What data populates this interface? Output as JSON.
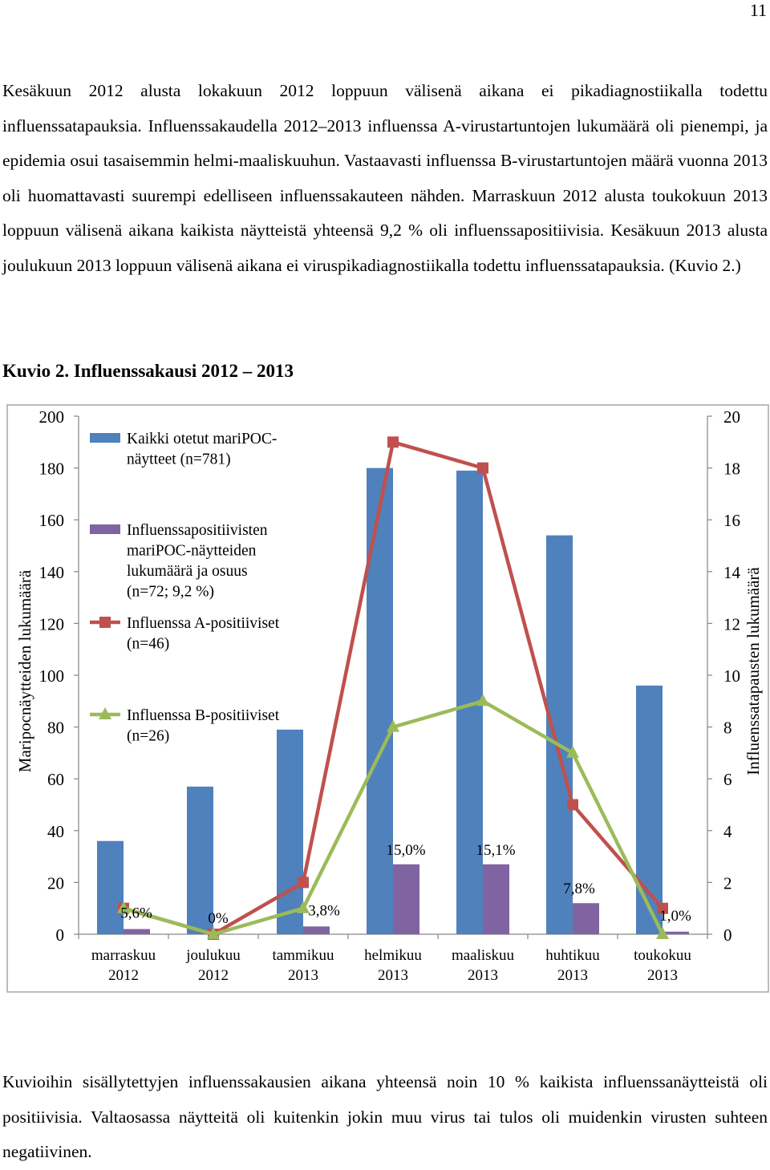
{
  "page": {
    "number": "11"
  },
  "text": {
    "paragraph1": "Kesäkuun 2012 alusta lokakuun 2012 loppuun välisenä aikana ei pikadiagnostiikalla todettu influenssatapauksia. Influenssakaudella 2012–2013 influenssa A-virustartuntojen lukumäärä oli pienempi, ja epidemia osui tasaisemmin helmi-maaliskuuhun. Vastaavasti influenssa B-virustartuntojen määrä vuonna 2013 oli huomattavasti suurempi edelliseen influenssakauteen nähden. Marraskuun 2012 alusta toukokuun 2013 loppuun välisenä aikana kaikista näytteistä yhteensä 9,2 % oli influenssapositiivisia. Kesäkuun 2013 alusta joulukuun 2013 loppuun välisenä aikana ei viruspikadiagnostiikalla todettu influenssatapauksia. (Kuvio 2.)",
    "figure_caption": "Kuvio 2. Influenssakausi 2012 – 2013",
    "paragraph2": "Kuvioihin sisällytettyjen influenssakausien aikana yhteensä noin 10 % kaikista influenssanäytteistä oli positiivisia. Valtaosassa näytteitä oli kuitenkin jokin muu virus tai tulos oli muidenkin virusten suhteen negatiivinen."
  },
  "chart_data": {
    "type": "bar",
    "categories": [
      [
        "marraskuu",
        "2012"
      ],
      [
        "joulukuu",
        "2012"
      ],
      [
        "tammikuu",
        "2013"
      ],
      [
        "helmikuu",
        "2013"
      ],
      [
        "maaliskuu",
        "2013"
      ],
      [
        "huhtikuu",
        "2013"
      ],
      [
        "toukokuu",
        "2013"
      ]
    ],
    "ylabel": "Maripocnäytteiden lukumäärä",
    "ylabel_right": "Influenssatapausten lukumäärä",
    "ylim": [
      0,
      200
    ],
    "yticks": [
      0,
      20,
      40,
      60,
      80,
      100,
      120,
      140,
      160,
      180,
      200
    ],
    "ylim_right": [
      0,
      20
    ],
    "yticks_right": [
      0,
      2,
      4,
      6,
      8,
      10,
      12,
      14,
      16,
      18,
      20
    ],
    "grid": false,
    "legend_position": "top-left inside",
    "series": [
      {
        "name": "Kaikki otetut mariPOC-näytteet (n=781)",
        "legend_lines": [
          "Kaikki otetut mariPOC-",
          "näytteet (n=781)"
        ],
        "type": "bar",
        "axis": "left",
        "color": "#4f81bd",
        "values": [
          36,
          57,
          79,
          180,
          179,
          154,
          96
        ]
      },
      {
        "name": "Influenssapositiivisten mariPOC-näytteiden lukumäärä ja osuus (n=72; 9,2 %)",
        "legend_lines": [
          "Influenssapositiivisten",
          "mariPOC-näytteiden",
          "lukumäärä ja osuus",
          "(n=72; 9,2 %)"
        ],
        "type": "bar",
        "axis": "left",
        "color": "#8064a2",
        "values": [
          2,
          0,
          3,
          27,
          27,
          12,
          1
        ],
        "data_labels": [
          "5,6%",
          "0%",
          "3,8%",
          "15,0%",
          "15,1%",
          "7,8%",
          "1,0%"
        ]
      },
      {
        "name": "Influenssa A-positiiviset (n=46)",
        "legend_lines": [
          "Influenssa A-positiiviset",
          "(n=46)"
        ],
        "type": "line",
        "marker": "square",
        "axis": "right",
        "color": "#c0504d",
        "values": [
          1,
          0,
          2,
          19,
          18,
          5,
          1
        ]
      },
      {
        "name": "Influenssa B-positiiviset (n=26)",
        "legend_lines": [
          "Influenssa B-positiiviset",
          "(n=26)"
        ],
        "type": "line",
        "marker": "triangle",
        "axis": "right",
        "color": "#9bbb59",
        "values": [
          1,
          0,
          1,
          8,
          9,
          7,
          0
        ]
      }
    ]
  }
}
